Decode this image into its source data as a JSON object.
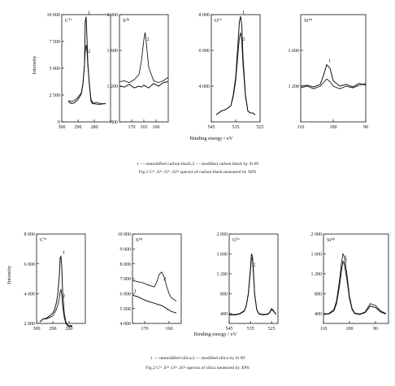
{
  "figures": [
    {
      "x_label": "Binding energy / eV",
      "y_label": "Intensity",
      "legend_line": "1 — unmodified carbon black;2 — modified carbon black by Si 69",
      "caption": "Fig.1   C¹ˢ ,S²ᵖ ,O¹ˢ ,Si²ᵖ spectra of carbon black measured by XPS"
    },
    {
      "x_label": "Binding energy / eV",
      "y_label": "Intensity",
      "legend_line": "1 — unmodified silica;2 — modified silica by Si 69",
      "caption": "Fig.2   C¹ˢ ,S²ᵖ ,O¹ˢ ,Si²ᵖ spectra of silica measured by XPS"
    }
  ],
  "chart_data": [
    {
      "type": "line",
      "figure": 1,
      "element": "C1s",
      "xlim": [
        300,
        270
      ],
      "ylim": [
        0,
        10000
      ],
      "x_ticks": [
        300,
        290,
        280
      ],
      "y_ticks": [
        0,
        2500,
        5000,
        7500,
        10000
      ],
      "y_tick_labels": [
        "0",
        "2 500",
        "5 000",
        "7 500",
        "10 000"
      ],
      "series": [
        {
          "name": "1",
          "x": [
            296,
            294,
            292,
            290,
            288,
            287,
            286,
            285.6,
            285,
            284.5,
            284,
            283,
            282,
            281,
            280,
            278,
            276,
            274,
            273
          ],
          "y": [
            1900,
            1700,
            1800,
            2100,
            2600,
            3500,
            5300,
            9300,
            9800,
            7800,
            5600,
            3400,
            1900,
            1700,
            1700,
            1650,
            1650,
            1700,
            1700
          ]
        },
        {
          "name": "2",
          "x": [
            296,
            294,
            292,
            290,
            288,
            287,
            286,
            285.6,
            285,
            284.5,
            284,
            283,
            282,
            281,
            280,
            278,
            276,
            274,
            273
          ],
          "y": [
            2000,
            1900,
            2000,
            2300,
            2700,
            3600,
            5400,
            6500,
            7200,
            6600,
            5300,
            3500,
            2100,
            1800,
            1800,
            1800,
            1700,
            1700,
            1700
          ]
        }
      ],
      "series_labels": [
        "1",
        "2"
      ]
    },
    {
      "type": "line",
      "figure": 1,
      "element": "S2p",
      "xlim": [
        175,
        155
      ],
      "ylim": [
        800,
        2000
      ],
      "x_ticks": [
        170,
        165,
        160
      ],
      "y_ticks": [
        800,
        1200,
        1600,
        2000
      ],
      "y_tick_labels": [
        "800",
        "1 200",
        "1 600",
        "2 000"
      ],
      "series": [
        {
          "name": "1",
          "x": [
            175,
            173,
            171,
            169,
            167,
            166,
            165,
            163,
            161,
            159,
            157,
            155
          ],
          "y": [
            1200,
            1190,
            1220,
            1180,
            1200,
            1190,
            1210,
            1180,
            1230,
            1200,
            1240,
            1250
          ]
        },
        {
          "name": "2",
          "x": [
            175,
            173,
            171,
            169,
            167,
            166,
            165,
            164.5,
            164,
            163,
            161,
            159,
            157,
            155
          ],
          "y": [
            1250,
            1260,
            1240,
            1270,
            1330,
            1480,
            1720,
            1800,
            1690,
            1410,
            1260,
            1240,
            1260,
            1300
          ]
        }
      ],
      "series_labels": [
        "2"
      ]
    },
    {
      "type": "line",
      "figure": 1,
      "element": "O1s",
      "xlim": [
        545,
        525
      ],
      "ylim": [
        2000,
        8000
      ],
      "x_ticks": [
        545,
        535,
        525
      ],
      "y_ticks": [
        2000,
        4000,
        6000,
        8000
      ],
      "y_tick_labels": [
        "",
        "4 000",
        "6 000",
        "8 000"
      ],
      "series": [
        {
          "name": "1",
          "x": [
            543,
            541,
            539,
            537,
            536,
            535,
            534,
            533.5,
            533,
            532.5,
            532,
            531,
            530,
            529,
            528,
            527
          ],
          "y": [
            2400,
            2600,
            2700,
            2900,
            3500,
            4500,
            6500,
            7600,
            7900,
            7400,
            5600,
            3500,
            2600,
            2500,
            2500,
            2400
          ]
        },
        {
          "name": "2",
          "x": [
            543,
            541,
            539,
            537,
            536,
            535,
            534,
            533.5,
            533,
            532.5,
            532,
            531,
            530,
            529,
            528,
            527
          ],
          "y": [
            2400,
            2600,
            2700,
            2900,
            3400,
            4300,
            5900,
            6700,
            7000,
            6500,
            5200,
            3400,
            2600,
            2500,
            2500,
            2400
          ]
        }
      ],
      "series_labels": [
        "1",
        "2"
      ]
    },
    {
      "type": "line",
      "figure": 1,
      "element": "Si2p",
      "xlim": [
        110,
        90
      ],
      "ylim": [
        800,
        2000
      ],
      "x_ticks": [
        110,
        100,
        90
      ],
      "y_ticks": [
        1200,
        1600
      ],
      "y_tick_labels": [
        "1 200",
        "1 600"
      ],
      "series": [
        {
          "name": "1",
          "x": [
            110,
            108,
            106,
            104,
            103,
            102,
            101,
            100,
            98,
            96,
            94,
            92,
            90
          ],
          "y": [
            1200,
            1210,
            1190,
            1220,
            1320,
            1440,
            1400,
            1260,
            1200,
            1220,
            1190,
            1230,
            1210
          ]
        },
        {
          "name": "2",
          "x": [
            110,
            108,
            106,
            104,
            103,
            102,
            101,
            100,
            98,
            96,
            94,
            92,
            90
          ],
          "y": [
            1180,
            1200,
            1170,
            1200,
            1240,
            1280,
            1250,
            1200,
            1170,
            1200,
            1180,
            1210,
            1230
          ]
        }
      ],
      "series_labels": [
        "1"
      ]
    },
    {
      "type": "line",
      "figure": 2,
      "element": "C1s",
      "xlim": [
        300,
        270
      ],
      "ylim": [
        2000,
        8000
      ],
      "x_ticks": [
        300,
        290,
        280
      ],
      "y_ticks": [
        2000,
        4000,
        6000,
        8000
      ],
      "y_tick_labels": [
        "2 000",
        "4 000",
        "6 000",
        "8 000"
      ],
      "series": [
        {
          "name": "1",
          "x": [
            298,
            296,
            294,
            292,
            290,
            289,
            288,
            287,
            286,
            285.5,
            285,
            284.5,
            284,
            283,
            282,
            281,
            280,
            278
          ],
          "y": [
            2100,
            2300,
            2350,
            2500,
            2700,
            2900,
            3300,
            3900,
            5200,
            6400,
            6500,
            5800,
            4200,
            2700,
            2100,
            1900,
            1850,
            1850
          ]
        },
        {
          "name": "2",
          "x": [
            298,
            296,
            294,
            292,
            290,
            289,
            288,
            287,
            286,
            285.5,
            285,
            284.5,
            284,
            283,
            282,
            281,
            280,
            278
          ],
          "y": [
            2100,
            2300,
            2300,
            2400,
            2500,
            2700,
            2900,
            3200,
            3700,
            4100,
            4300,
            3900,
            3200,
            2400,
            2000,
            1850,
            1800,
            1800
          ]
        }
      ],
      "series_labels": [
        "1",
        "2"
      ]
    },
    {
      "type": "line",
      "figure": 2,
      "element": "S2p",
      "xlim": [
        175,
        155
      ],
      "ylim": [
        4000,
        10000
      ],
      "x_ticks": [
        170,
        160
      ],
      "y_ticks": [
        4000,
        5000,
        6000,
        7000,
        8000,
        9000,
        10000
      ],
      "y_tick_labels": [
        "4 000",
        "5 000",
        "6 000",
        "7 000",
        "8 000",
        "9 000",
        "10 000"
      ],
      "series": [
        {
          "name": "1",
          "x": [
            175,
            173,
            171,
            169,
            167,
            165,
            163,
            161,
            159,
            157
          ],
          "y": [
            5900,
            5800,
            5650,
            5500,
            5400,
            5300,
            5200,
            5000,
            4800,
            4700
          ]
        },
        {
          "name": "2",
          "x": [
            175,
            173,
            171,
            169,
            167,
            166,
            165,
            164,
            163,
            162,
            161,
            160,
            159,
            157
          ],
          "y": [
            6900,
            6800,
            6750,
            6600,
            6500,
            6450,
            6800,
            7300,
            7450,
            7100,
            6500,
            6000,
            5700,
            5500
          ]
        }
      ],
      "series_labels": [
        "2",
        "1"
      ]
    },
    {
      "type": "line",
      "figure": 2,
      "element": "O1s",
      "xlim": [
        545,
        522
      ],
      "ylim": [
        200,
        2000
      ],
      "x_ticks": [
        545,
        535,
        525
      ],
      "y_ticks": [
        400,
        800,
        1200,
        1600,
        2000
      ],
      "y_tick_labels": [
        "400",
        "800",
        "1 200",
        "1 600",
        "2 000"
      ],
      "series": [
        {
          "name": "1",
          "x": [
            545,
            542,
            540,
            538,
            537,
            536,
            535,
            534.5,
            534,
            533.5,
            533,
            532,
            531,
            529,
            527,
            526,
            525,
            524,
            523
          ],
          "y": [
            380,
            380,
            400,
            450,
            550,
            800,
            1300,
            1600,
            1550,
            1200,
            800,
            480,
            400,
            380,
            390,
            420,
            500,
            450,
            390
          ]
        },
        {
          "name": "2",
          "x": [
            545,
            542,
            540,
            538,
            537,
            536,
            535,
            534.5,
            534,
            533.5,
            533,
            532,
            531,
            529,
            527,
            526,
            525,
            524,
            523
          ],
          "y": [
            370,
            370,
            390,
            440,
            540,
            780,
            1250,
            1520,
            1480,
            1150,
            780,
            470,
            390,
            370,
            380,
            410,
            480,
            440,
            380
          ]
        }
      ],
      "series_labels": [
        "2"
      ]
    },
    {
      "type": "line",
      "figure": 2,
      "element": "Si2p",
      "xlim": [
        110,
        85
      ],
      "ylim": [
        200,
        2000
      ],
      "x_ticks": [
        110,
        100,
        90
      ],
      "y_ticks": [
        400,
        800,
        1200,
        1600,
        2000
      ],
      "y_tick_labels": [
        "400",
        "800",
        "1 200",
        "1 600",
        "2 000"
      ],
      "series": [
        {
          "name": "1",
          "x": [
            110,
            108,
            106,
            105,
            104,
            103,
            102.5,
            102,
            101,
            100,
            99,
            98,
            96,
            94,
            92,
            90,
            88,
            86
          ],
          "y": [
            380,
            390,
            450,
            600,
            900,
            1300,
            1450,
            1400,
            1100,
            700,
            480,
            400,
            380,
            420,
            550,
            520,
            430,
            390
          ]
        },
        {
          "name": "2",
          "x": [
            110,
            108,
            106,
            105,
            104,
            103,
            102.5,
            102,
            101,
            100,
            99,
            98,
            96,
            94,
            92,
            90,
            88,
            86
          ],
          "y": [
            380,
            400,
            480,
            650,
            1000,
            1450,
            1600,
            1550,
            1200,
            750,
            500,
            410,
            390,
            430,
            600,
            560,
            450,
            400
          ]
        }
      ],
      "series_labels": [
        "2",
        "1"
      ]
    }
  ]
}
